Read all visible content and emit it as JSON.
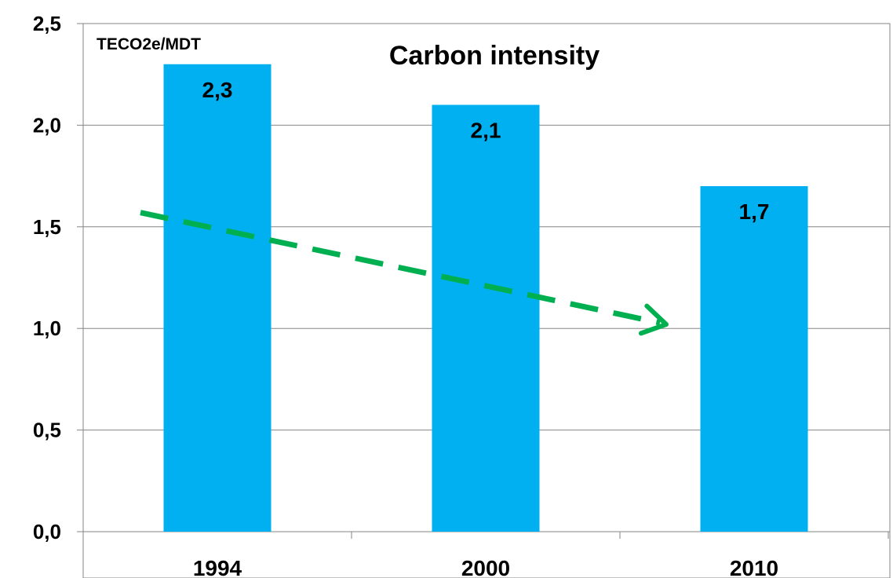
{
  "chart_data": {
    "type": "bar",
    "title": "Carbon intensity",
    "ylabel": "TECO2e/MDT",
    "xlabel": "",
    "categories": [
      "1994",
      "2000",
      "2010"
    ],
    "values": [
      2.3,
      2.1,
      1.7
    ],
    "data_labels": [
      "2,3",
      "2,1",
      "1,7"
    ],
    "ylim": [
      0,
      2.5
    ],
    "yticks": [
      0,
      0.5,
      1.0,
      1.5,
      2.0,
      2.5
    ],
    "ytick_labels": [
      "0,0",
      "0,5",
      "1,0",
      "1,5",
      "2,0",
      "2,5"
    ],
    "grid": true,
    "legend": "none",
    "bar_color": "#00B0F0",
    "trend_arrow": {
      "from": {
        "x": "1994",
        "y": 1.57
      },
      "to": {
        "x": "2010",
        "y": 1.02
      },
      "color": "#00B050",
      "style": "dashed"
    }
  }
}
